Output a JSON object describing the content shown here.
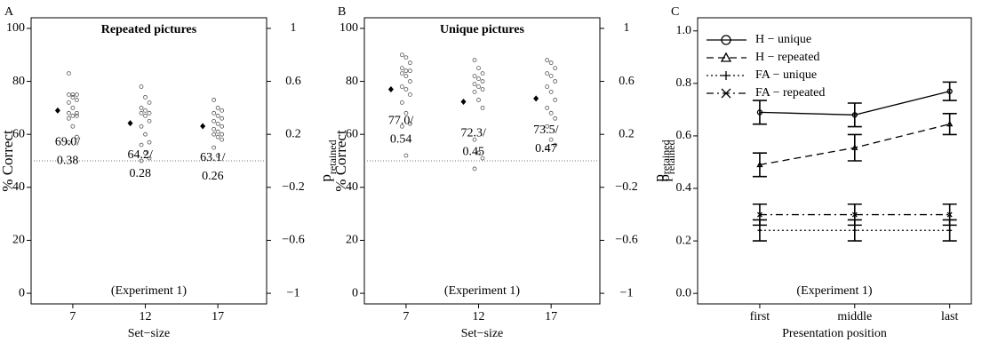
{
  "chart_data": [
    {
      "type": "strip",
      "panel_label": "A",
      "title": "Repeated pictures",
      "annotation": "(Experiment 1)",
      "xlabel": "Set−size",
      "ylabel": "% Correct",
      "y2label": "p",
      "y2label_sub": "retained",
      "categories": [
        "7",
        "12",
        "17"
      ],
      "ylim": [
        -4,
        104
      ],
      "yticks": [
        0,
        20,
        40,
        60,
        80,
        100
      ],
      "y2lim": [
        -1.08,
        1.08
      ],
      "y2ticks": [
        {
          "value": -1,
          "label": "−1"
        },
        {
          "value": -0.6,
          "label": "−0.6"
        },
        {
          "value": -0.2,
          "label": "−0.2"
        },
        0.2,
        0.6,
        1
      ],
      "reference_line": 50,
      "means": {
        "values": [
          69.0,
          64.2,
          63.1
        ],
        "value_labels": [
          "69.0/",
          "64.2/",
          "63.1/"
        ],
        "p_retained": [
          0.38,
          0.28,
          0.26
        ]
      },
      "points": [
        [
          83,
          75,
          75,
          75,
          74,
          73,
          72,
          70,
          68,
          68,
          67,
          67,
          66,
          63,
          59,
          57
        ],
        [
          78,
          74,
          72,
          70,
          69,
          68,
          68,
          67,
          65,
          63,
          60,
          57,
          56,
          53,
          51,
          50
        ],
        [
          73,
          70,
          69,
          68,
          67,
          66,
          65,
          64,
          63,
          62,
          61,
          60,
          60,
          59,
          58,
          55,
          52
        ]
      ]
    },
    {
      "type": "strip",
      "panel_label": "B",
      "title": "Unique pictures",
      "annotation": "(Experiment 1)",
      "xlabel": "Set−size",
      "ylabel": "% Correct",
      "y2label": "p",
      "y2label_sub": "retained",
      "categories": [
        "7",
        "12",
        "17"
      ],
      "ylim": [
        -4,
        104
      ],
      "yticks": [
        0,
        20,
        40,
        60,
        80,
        100
      ],
      "y2lim": [
        -1.08,
        1.08
      ],
      "y2ticks": [
        {
          "value": -1,
          "label": "−1"
        },
        {
          "value": -0.6,
          "label": "−0.6"
        },
        {
          "value": -0.2,
          "label": "−0.2"
        },
        0.2,
        0.6,
        1
      ],
      "reference_line": 50,
      "means": {
        "values": [
          77.0,
          72.3,
          73.5
        ],
        "value_labels": [
          "77.0/",
          "72.3/",
          "73.5/"
        ],
        "p_retained": [
          0.54,
          0.45,
          0.47
        ]
      },
      "points": [
        [
          90,
          89,
          87,
          85,
          84,
          84,
          83,
          82,
          80,
          78,
          77,
          75,
          72,
          68,
          64,
          63,
          52
        ],
        [
          88,
          85,
          83,
          82,
          81,
          80,
          79,
          78,
          77,
          76,
          73,
          70,
          58,
          53,
          51,
          47
        ],
        [
          88,
          87,
          85,
          83,
          82,
          80,
          78,
          76,
          73,
          70,
          68,
          66,
          63,
          58,
          56,
          55
        ]
      ]
    },
    {
      "type": "line",
      "panel_label": "C",
      "annotation": "(Experiment 1)",
      "xlabel": "Presentation position",
      "ylabel": "p",
      "ylabel_sub": "retained",
      "categories": [
        "first",
        "middle",
        "last"
      ],
      "ylim": [
        -0.04,
        1.05
      ],
      "yticks": [
        {
          "value": 0,
          "label": "0.0"
        },
        0.2,
        0.4,
        0.6,
        0.8,
        {
          "value": 1,
          "label": "1.0"
        }
      ],
      "series": [
        {
          "name": "H − unique",
          "color": "#000000",
          "dash": "solid",
          "marker": "circle",
          "values": [
            0.69,
            0.68,
            0.77
          ],
          "errors": [
            0.045,
            0.045,
            0.035
          ]
        },
        {
          "name": "H − repeated",
          "color": "#000000",
          "dash": "dashed",
          "marker": "triangle",
          "values": [
            0.49,
            0.555,
            0.645
          ],
          "errors": [
            0.045,
            0.05,
            0.04
          ]
        },
        {
          "name": "FA − unique",
          "color": "#000000",
          "dash": "dotted",
          "marker": "plus",
          "values": [
            0.24,
            0.24,
            0.24
          ],
          "errors": [
            0.04,
            0.04,
            0.04
          ]
        },
        {
          "name": "FA − repeated",
          "color": "#000000",
          "dash": "dashdot",
          "marker": "cross",
          "values": [
            0.3,
            0.3,
            0.3
          ],
          "errors": [
            0.04,
            0.04,
            0.04
          ]
        }
      ]
    }
  ]
}
